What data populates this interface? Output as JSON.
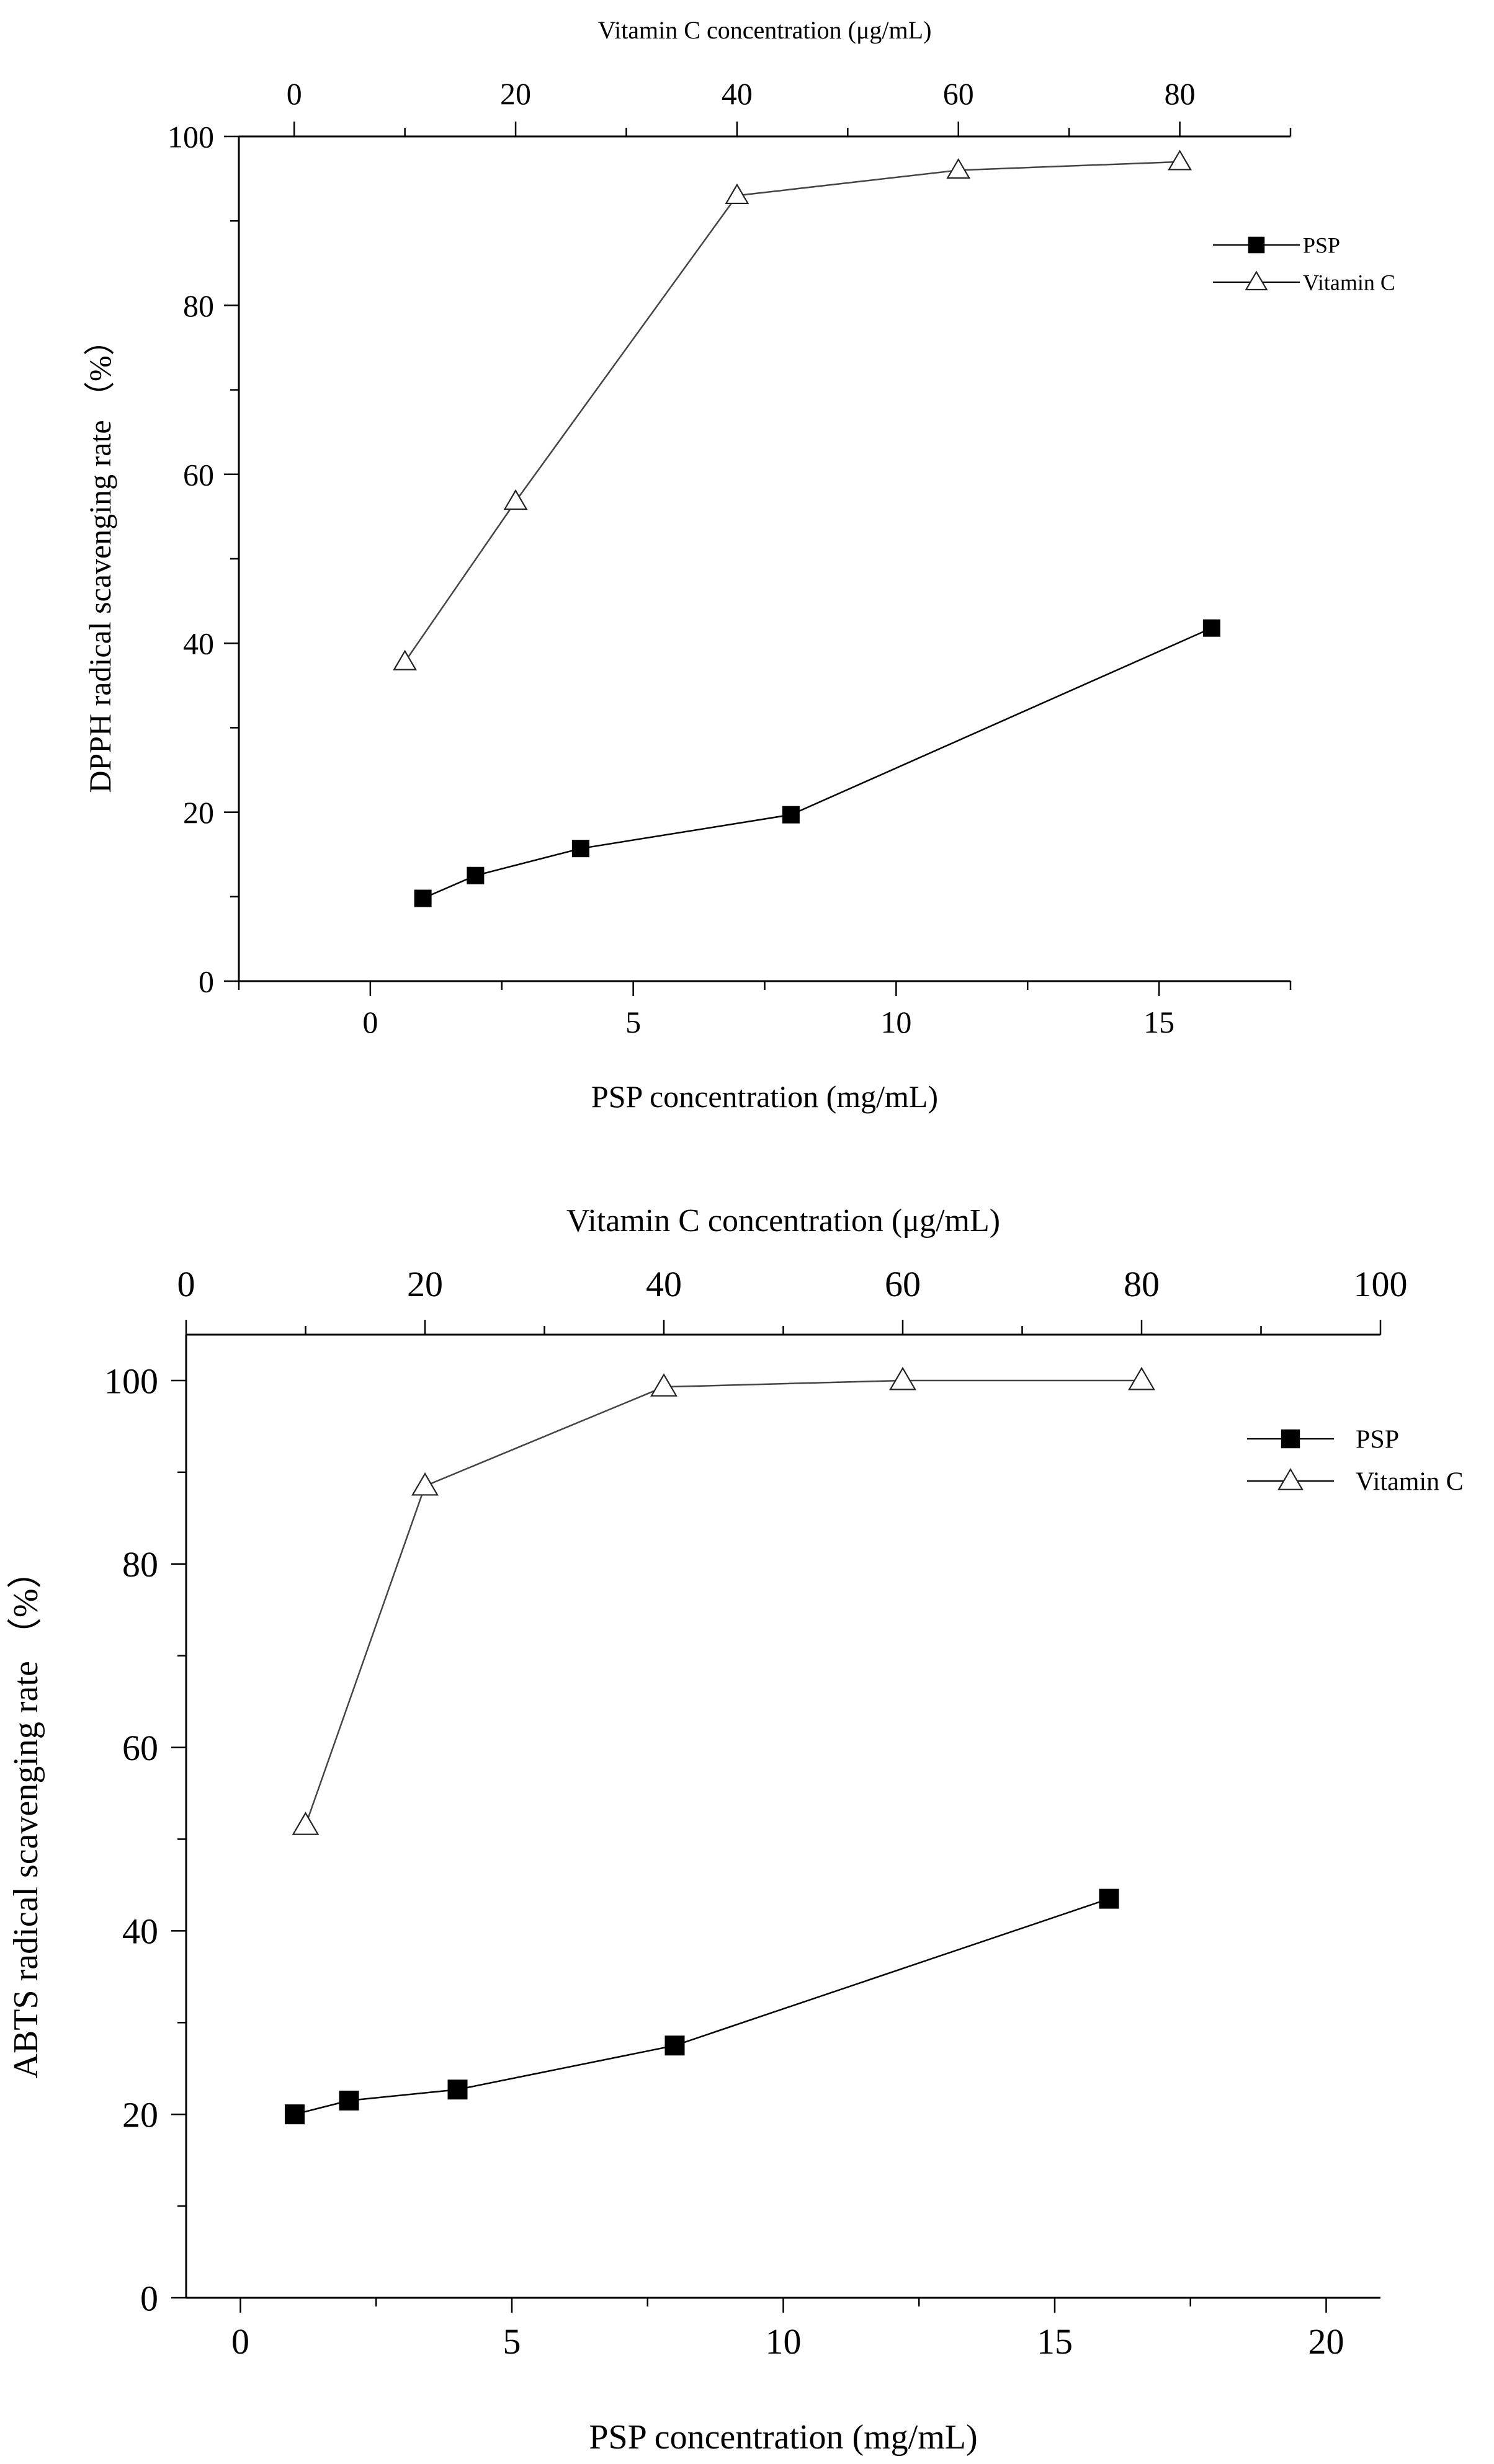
{
  "chart_data": [
    {
      "type": "line",
      "title": "",
      "xlabel": "PSP concentration (mg/mL)",
      "x2label": "Vitamin C concentration (μg/mL)",
      "ylabel": "DPPH radical scavenging rate （%）",
      "xlim": [
        -2.5,
        17.5
      ],
      "x2lim": [
        -5.0,
        90.0
      ],
      "ylim": [
        0,
        100
      ],
      "xticks": [
        0,
        5,
        10,
        15
      ],
      "x2ticks": [
        0,
        20,
        40,
        60,
        80
      ],
      "yticks": [
        0,
        20,
        40,
        60,
        80,
        100
      ],
      "xtick_labels": [
        "0",
        "5",
        "10",
        "15"
      ],
      "x2tick_labels": [
        "0",
        "20",
        "40",
        "60",
        "80"
      ],
      "ytick_labels": [
        "0",
        "20",
        "40",
        "60",
        "80",
        "100"
      ],
      "legend_position": "top-right",
      "series": [
        {
          "name": "PSP",
          "axis": "bottom",
          "marker": "filled-square",
          "x": [
            1,
            2,
            4,
            8,
            16
          ],
          "y": [
            9.8,
            12.5,
            15.7,
            19.7,
            41.8
          ]
        },
        {
          "name": "Vitamin C",
          "axis": "top",
          "marker": "open-triangle",
          "x": [
            10,
            20,
            40,
            60,
            80
          ],
          "y": [
            37.8,
            56.8,
            93.0,
            96.0,
            97.0
          ]
        }
      ]
    },
    {
      "type": "line",
      "title": "",
      "xlabel": "PSP concentration (mg/mL)",
      "x2label": "Vitamin C concentration (μg/mL)",
      "ylabel": "ABTS radical scavenging rate （%）",
      "xlim": [
        -1.0,
        21.0
      ],
      "x2lim": [
        0,
        100
      ],
      "ylim": [
        0,
        105
      ],
      "xticks": [
        0,
        5,
        10,
        15,
        20
      ],
      "x2ticks": [
        0,
        20,
        40,
        60,
        80,
        100
      ],
      "yticks": [
        0,
        20,
        40,
        60,
        80,
        100
      ],
      "xtick_labels": [
        "0",
        "5",
        "10",
        "15",
        "20"
      ],
      "x2tick_labels": [
        "0",
        "20",
        "40",
        "60",
        "80",
        "100"
      ],
      "ytick_labels": [
        "0",
        "20",
        "40",
        "60",
        "80",
        "100"
      ],
      "legend_position": "top-right",
      "series": [
        {
          "name": "PSP",
          "axis": "bottom",
          "marker": "filled-square",
          "x": [
            1,
            2,
            4,
            8,
            16
          ],
          "y": [
            20.0,
            21.5,
            22.7,
            27.5,
            43.5
          ]
        },
        {
          "name": "Vitamin C",
          "axis": "top",
          "marker": "open-triangle",
          "x": [
            10,
            20,
            40,
            60,
            80
          ],
          "y": [
            51.5,
            88.5,
            99.3,
            100.0,
            100.0
          ]
        }
      ]
    }
  ]
}
